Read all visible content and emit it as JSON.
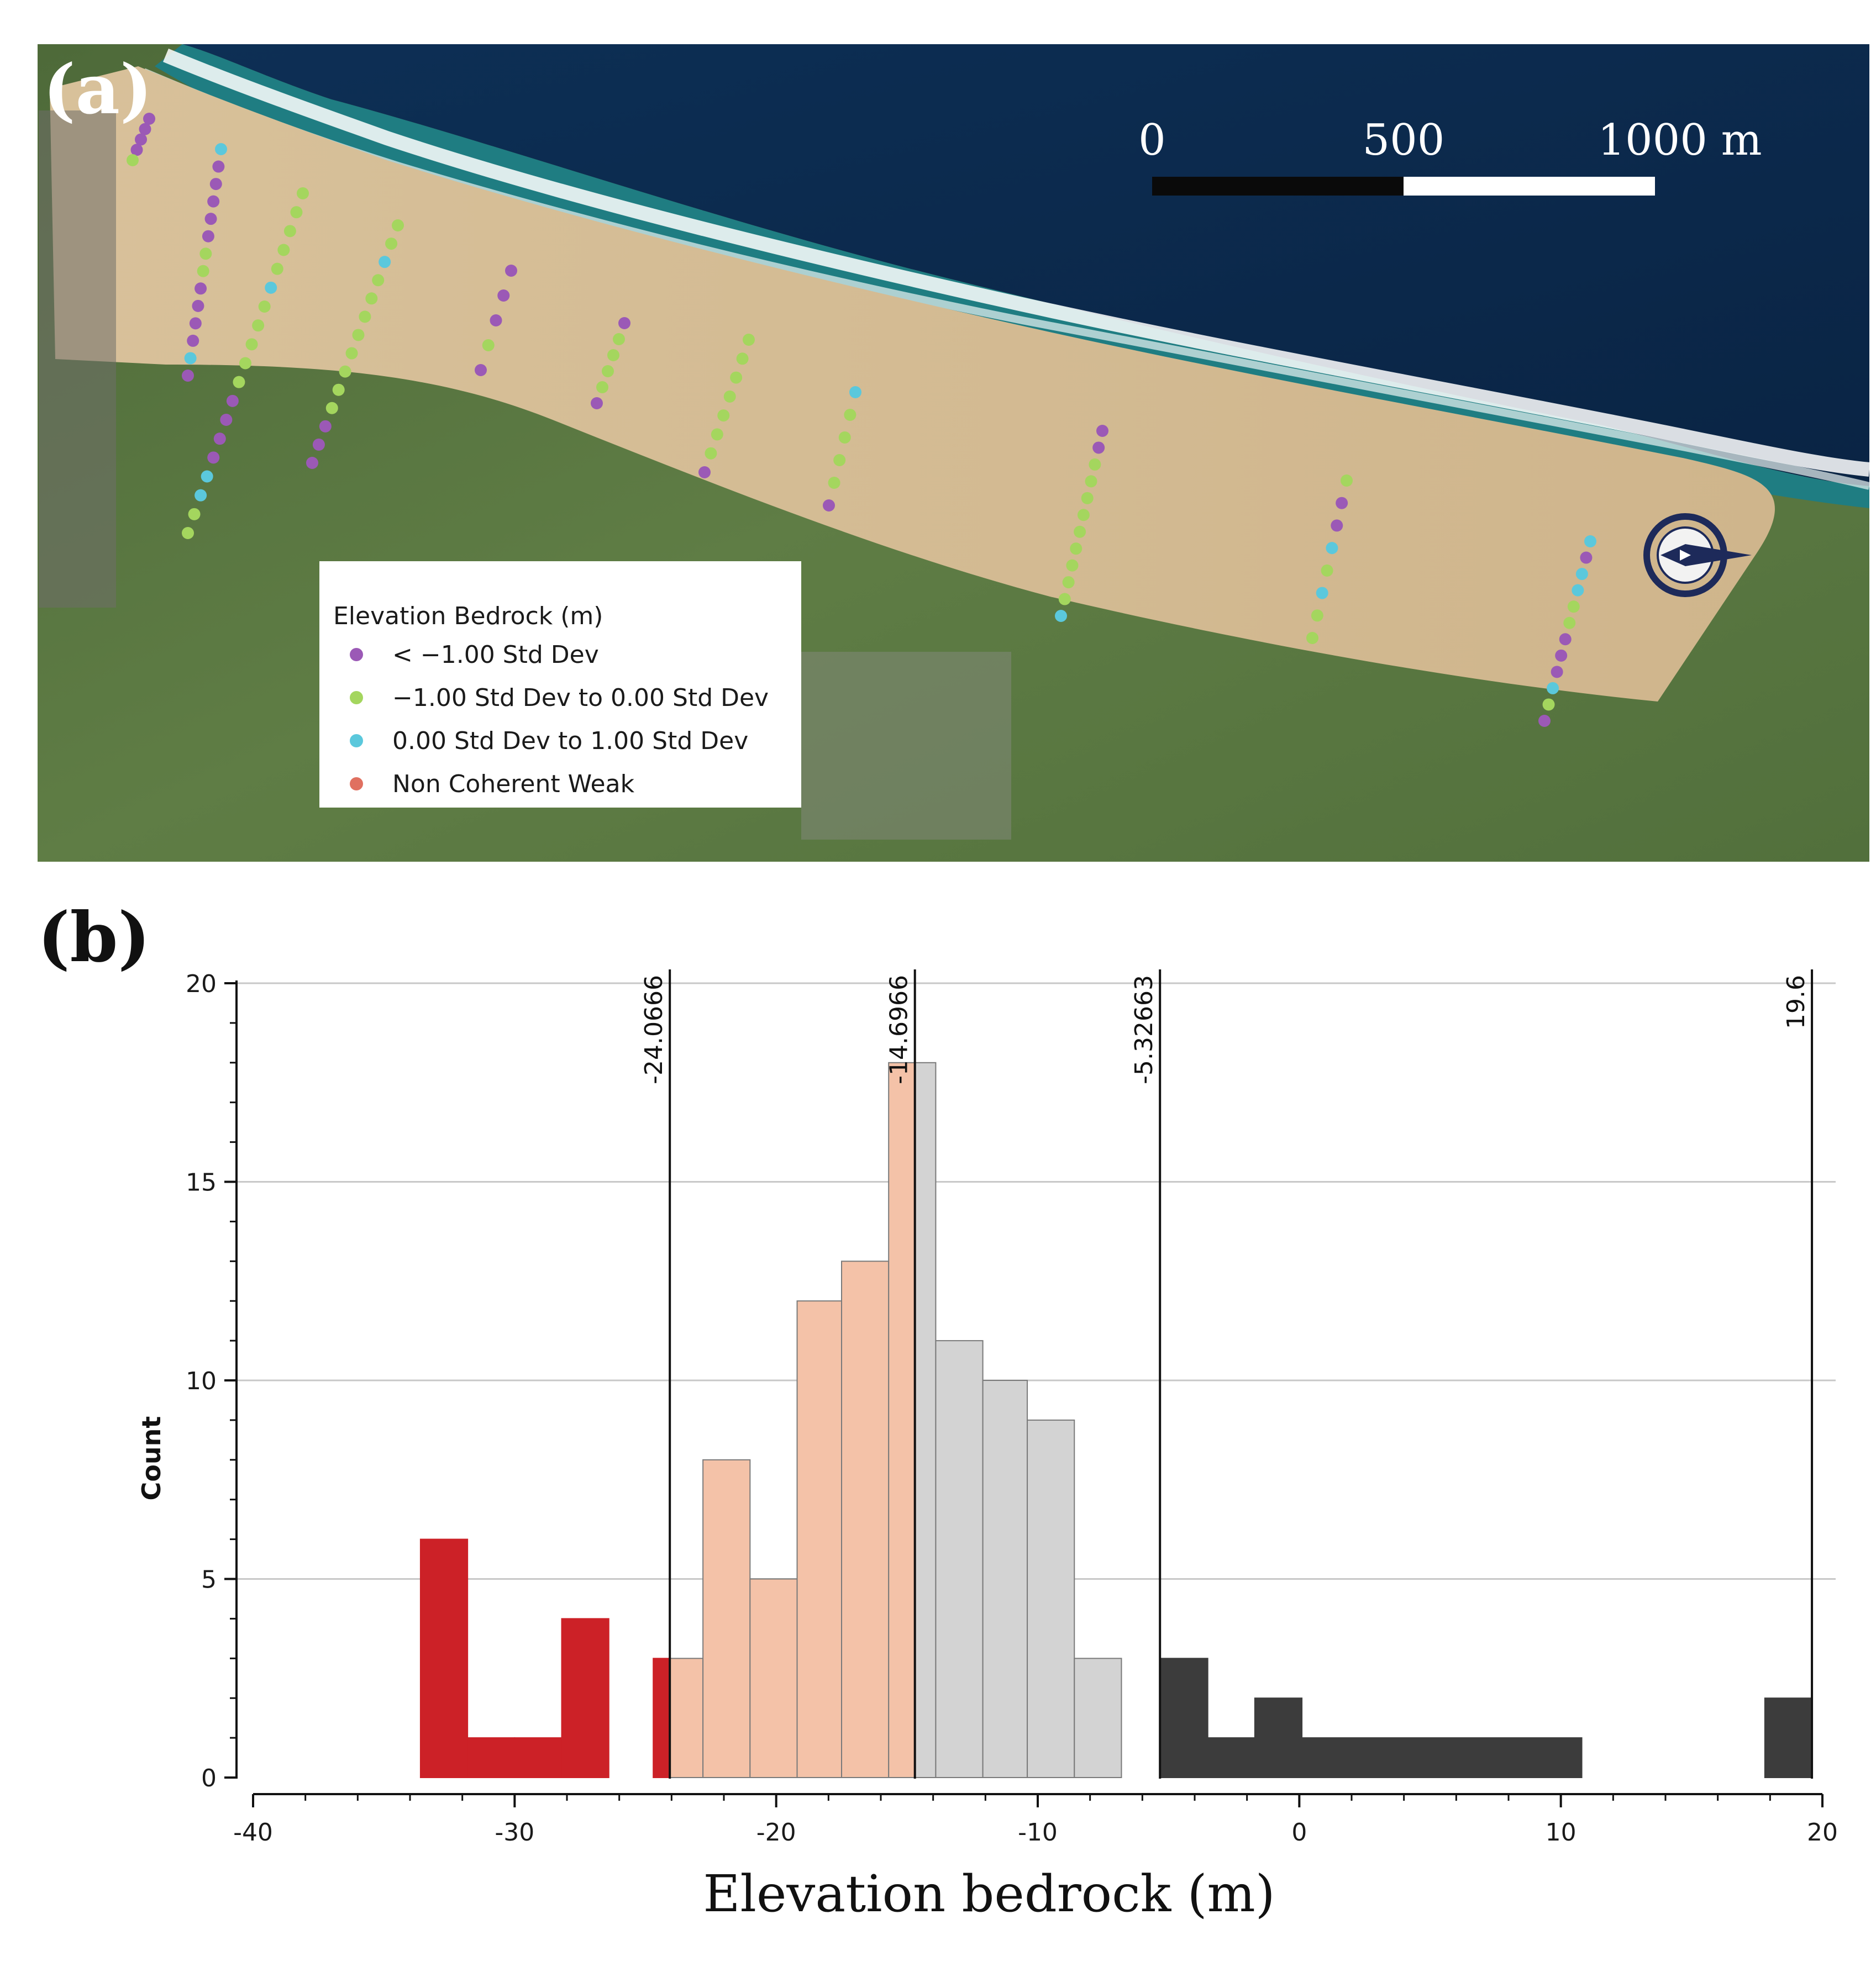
{
  "map": {
    "panel_label": "(a)",
    "scale_bar": {
      "labels": [
        "0",
        "500",
        "1000 m"
      ]
    },
    "legend": {
      "title": "Elevation Bedrock (m)",
      "items": [
        {
          "label": "<  −1.00 Std Dev",
          "color": "#9b59b6"
        },
        {
          "label": " −1.00 Std Dev to  0.00 Std Dev",
          "color": "#a4d65e"
        },
        {
          "label": " 0.00 Std Dev to  1.00 Std Dev",
          "color": "#5bc8dc"
        },
        {
          "label": "Non Coherent Weak",
          "color": "#e07060"
        }
      ]
    },
    "icons": [
      "compass-rose-icon"
    ],
    "transects": [
      {
        "colors": [
          "purple",
          "purple",
          "purple",
          "purple",
          "green"
        ]
      },
      {
        "colors": [
          "cyan",
          "purple",
          "purple",
          "purple",
          "purple",
          "purple",
          "green",
          "green",
          "purple",
          "purple",
          "purple",
          "purple",
          "cyan",
          "purple"
        ]
      },
      {
        "colors": [
          "green",
          "green",
          "green",
          "green",
          "green",
          "cyan",
          "green",
          "green",
          "green",
          "green",
          "green",
          "purple",
          "purple",
          "purple",
          "purple",
          "cyan",
          "cyan",
          "green",
          "green"
        ]
      },
      {
        "colors": [
          "green",
          "green",
          "cyan",
          "green",
          "green",
          "green",
          "green",
          "green",
          "green",
          "green",
          "green",
          "purple",
          "purple",
          "purple"
        ]
      },
      {
        "colors": [
          "purple",
          "purple",
          "purple",
          "green",
          "purple"
        ]
      },
      {
        "colors": [
          "purple",
          "green",
          "green",
          "green",
          "green",
          "purple"
        ]
      },
      {
        "colors": [
          "green",
          "green",
          "green",
          "green",
          "green",
          "green",
          "green",
          "purple"
        ]
      },
      {
        "colors": [
          "cyan",
          "green",
          "green",
          "green",
          "green",
          "purple"
        ]
      },
      {
        "colors": [
          "purple",
          "purple",
          "green",
          "green",
          "green",
          "green",
          "green",
          "green",
          "green",
          "green",
          "green",
          "cyan"
        ]
      },
      {
        "colors": [
          "green",
          "purple",
          "purple",
          "cyan",
          "green",
          "cyan",
          "green",
          "green"
        ]
      },
      {
        "colors": [
          "cyan",
          "purple",
          "cyan",
          "cyan",
          "green",
          "green",
          "purple",
          "purple",
          "purple",
          "cyan",
          "green",
          "purple"
        ]
      }
    ]
  },
  "histogram": {
    "panel_label": "(b)",
    "colors": {
      "low": "#cc2127",
      "midlow": "#f4c2a8",
      "midhigh": "#d3d3d3",
      "high": "#3c3c3c",
      "gridline": "#c8c8c8"
    }
  },
  "chart_data": {
    "type": "bar",
    "title": "",
    "xlabel": "Elevation bedrock (m)",
    "ylabel": "Count",
    "xlim": [
      -40,
      20
    ],
    "ylim": [
      0,
      20
    ],
    "xticks": [
      -40,
      -30,
      -20,
      -10,
      0,
      10,
      20
    ],
    "yticks": [
      0,
      5,
      10,
      15,
      20
    ],
    "grid": "horizontal",
    "bins": [
      {
        "x0": -33.6,
        "x1": -31.8,
        "count": 6,
        "class": "low"
      },
      {
        "x0": -31.8,
        "x1": -30.0,
        "count": 1,
        "class": "low"
      },
      {
        "x0": -30.0,
        "x1": -28.2,
        "count": 1,
        "class": "low"
      },
      {
        "x0": -28.2,
        "x1": -26.4,
        "count": 4,
        "class": "low"
      },
      {
        "x0": -24.7,
        "x1": -24.07,
        "count": 3,
        "class": "low"
      },
      {
        "x0": -24.07,
        "x1": -22.8,
        "count": 3,
        "class": "midlow"
      },
      {
        "x0": -22.8,
        "x1": -21.0,
        "count": 8,
        "class": "midlow"
      },
      {
        "x0": -21.0,
        "x1": -19.2,
        "count": 5,
        "class": "midlow"
      },
      {
        "x0": -19.2,
        "x1": -17.5,
        "count": 12,
        "class": "midlow"
      },
      {
        "x0": -17.5,
        "x1": -15.7,
        "count": 13,
        "class": "midlow"
      },
      {
        "x0": -15.7,
        "x1": -14.7,
        "count": 18,
        "class": "midlow"
      },
      {
        "x0": -14.7,
        "x1": -13.9,
        "count": 18,
        "class": "midhigh"
      },
      {
        "x0": -13.9,
        "x1": -12.1,
        "count": 11,
        "class": "midhigh"
      },
      {
        "x0": -12.1,
        "x1": -10.4,
        "count": 10,
        "class": "midhigh"
      },
      {
        "x0": -10.4,
        "x1": -8.6,
        "count": 9,
        "class": "midhigh"
      },
      {
        "x0": -8.6,
        "x1": -6.8,
        "count": 3,
        "class": "midhigh"
      },
      {
        "x0": -5.33,
        "x1": -3.5,
        "count": 3,
        "class": "high"
      },
      {
        "x0": -3.5,
        "x1": -1.7,
        "count": 1,
        "class": "high"
      },
      {
        "x0": -1.7,
        "x1": 0.1,
        "count": 2,
        "class": "high"
      },
      {
        "x0": 0.1,
        "x1": 10.8,
        "count": 1,
        "class": "high"
      },
      {
        "x0": 17.8,
        "x1": 19.6,
        "count": 2,
        "class": "high"
      }
    ],
    "class_breaks": [
      {
        "value": -24.0666,
        "label": "-24.0666"
      },
      {
        "value": -14.6966,
        "label": "-14.6966"
      },
      {
        "value": -5.32663,
        "label": "-5.32663"
      },
      {
        "value": 19.6,
        "label": "19.6"
      }
    ]
  }
}
